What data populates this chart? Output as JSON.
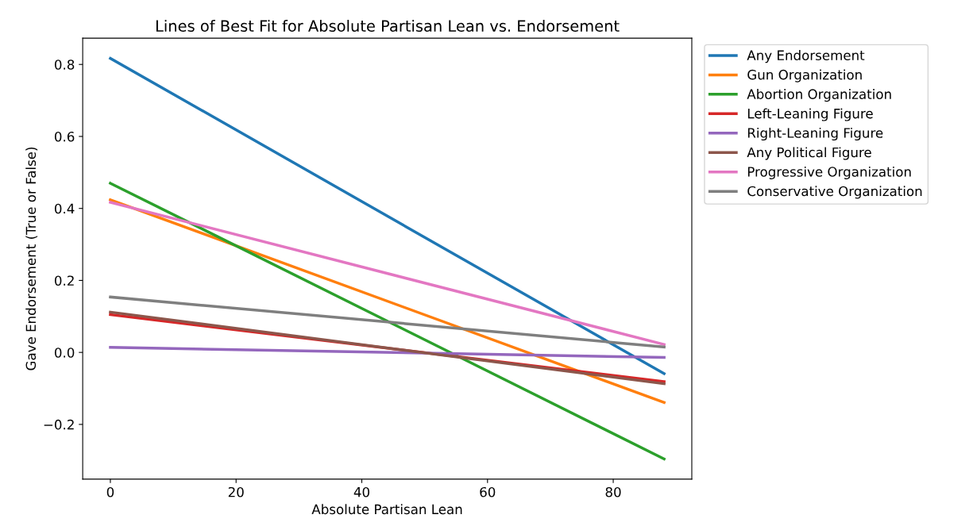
{
  "chart_data": {
    "type": "line",
    "title": "Lines of Best Fit for Absolute Partisan Lean vs. Endorsement",
    "xlabel": "Absolute Partisan Lean",
    "ylabel": "Gave Endorsement (True or False)",
    "x": [
      0,
      88.1
    ],
    "series": [
      {
        "name": "Any Endorsement",
        "color": "#1f77b4",
        "values": [
          0.817,
          -0.059
        ]
      },
      {
        "name": "Gun Organization",
        "color": "#ff7f0e",
        "values": [
          0.424,
          -0.139
        ]
      },
      {
        "name": "Abortion Organization",
        "color": "#2ca02c",
        "values": [
          0.47,
          -0.296
        ]
      },
      {
        "name": "Left-Leaning Figure",
        "color": "#d62728",
        "values": [
          0.105,
          -0.081
        ]
      },
      {
        "name": "Right-Leaning Figure",
        "color": "#9467bd",
        "values": [
          0.014,
          -0.014
        ]
      },
      {
        "name": "Any Political Figure",
        "color": "#8c564b",
        "values": [
          0.112,
          -0.087
        ]
      },
      {
        "name": "Progressive Organization",
        "color": "#e377c2",
        "values": [
          0.417,
          0.022
        ]
      },
      {
        "name": "Conservative Organization",
        "color": "#7f7f7f",
        "values": [
          0.154,
          0.015
        ]
      }
    ],
    "xlim": [
      -4.4,
      92.5
    ],
    "ylim": [
      -0.352,
      0.873
    ],
    "xticks": [
      0,
      20,
      40,
      60,
      80
    ],
    "yticks": [
      {
        "value": -0.2,
        "label": "−0.2"
      },
      {
        "value": 0.0,
        "label": "0.0"
      },
      {
        "value": 0.2,
        "label": "0.2"
      },
      {
        "value": 0.4,
        "label": "0.4"
      },
      {
        "value": 0.6,
        "label": "0.6"
      },
      {
        "value": 0.8,
        "label": "0.8"
      }
    ],
    "grid": false,
    "legend": "right",
    "marker": "none",
    "line_style": "solid"
  }
}
